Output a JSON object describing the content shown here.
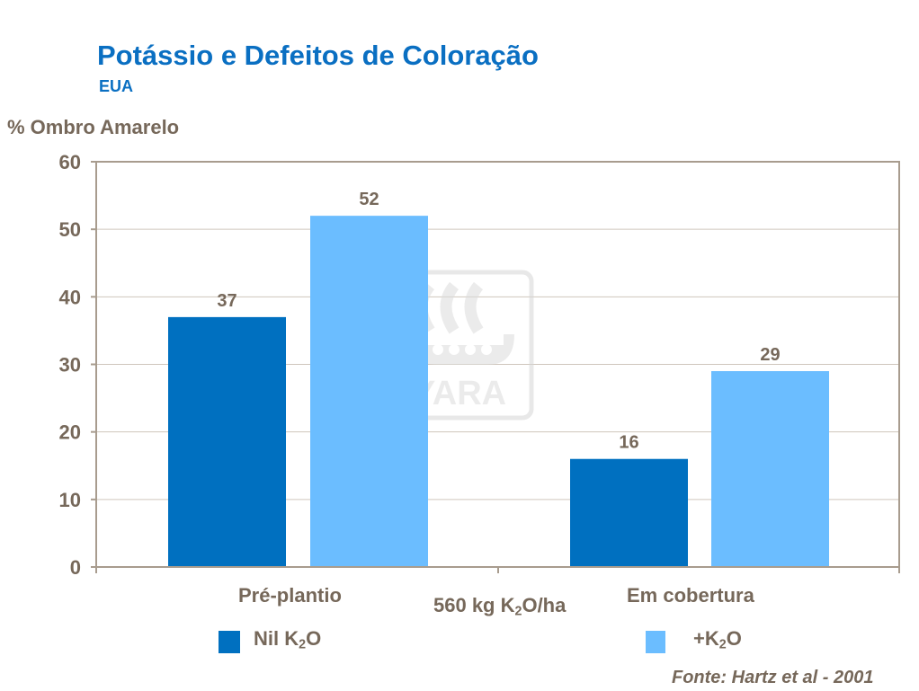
{
  "title": "Potássio e Defeitos de Coloração",
  "subtitle": "EUA",
  "source": "Fonte: Hartz et al - 2001",
  "logo_text": "YARA",
  "colors": {
    "nil": "#0070c0",
    "plus": "#6bbdff",
    "text": "#76685a",
    "title": "#0a6fc2",
    "grid": "#cfc6bc",
    "axis": "#a89c8e"
  },
  "chart_data": {
    "type": "bar",
    "ylabel": "% Ombro Amarelo",
    "xlabel": {
      "pre": "560 kg K",
      "sub": "2",
      "post": "O/ha"
    },
    "categories": [
      "Pré-plantio",
      "Em cobertura"
    ],
    "ylim": [
      0,
      60
    ],
    "yticks": [
      0,
      10,
      20,
      30,
      40,
      50,
      60
    ],
    "grid": true,
    "legend_placement": "bottom",
    "series": [
      {
        "name": {
          "pre": "Nil K",
          "sub": "2",
          "post": "O"
        },
        "values": [
          37,
          16
        ]
      },
      {
        "name": {
          "pre": "+K",
          "sub": "2",
          "post": "O"
        },
        "values": [
          52,
          29
        ]
      }
    ]
  }
}
